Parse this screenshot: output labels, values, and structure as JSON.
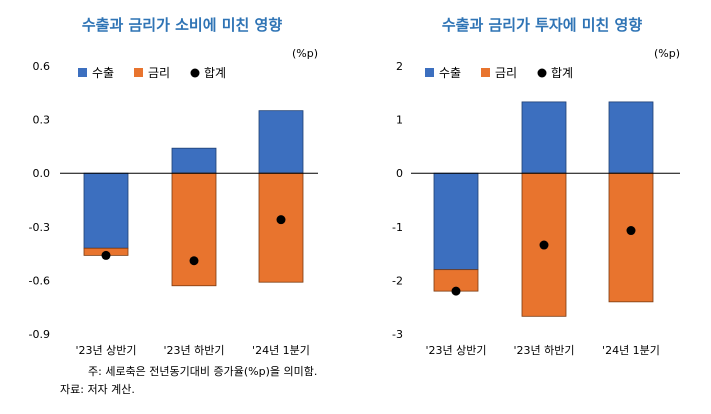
{
  "colors": {
    "export": "#3c6fbf",
    "rate": "#e8742e",
    "total": "#000000",
    "title": "#2f74b5"
  },
  "chart_data": [
    {
      "type": "bar",
      "title": "수출과 금리가 소비에 미친 영향",
      "unit": "(%p)",
      "categories": [
        "'23년 상반기",
        "'23년 하반기",
        "'24년 1분기"
      ],
      "ylim": [
        -0.9,
        0.6
      ],
      "yticks": [
        "0.6",
        "0.3",
        "0.0",
        "-0.3",
        "-0.6",
        "-0.9"
      ],
      "legend": [
        "수출",
        "금리",
        "합계"
      ],
      "series": [
        {
          "name": "수출",
          "values": [
            -0.42,
            0.14,
            0.35
          ]
        },
        {
          "name": "금리",
          "values": [
            -0.04,
            -0.63,
            -0.61
          ]
        },
        {
          "name": "합계",
          "values": [
            -0.46,
            -0.49,
            -0.26
          ]
        }
      ]
    },
    {
      "type": "bar",
      "title": "수출과 금리가 투자에 미친 영향",
      "unit": "(%p)",
      "categories": [
        "'23년 상반기",
        "'23년 하반기",
        "'24년 1분기"
      ],
      "ylim": [
        -3,
        2
      ],
      "yticks": [
        "2",
        "1",
        "0",
        "-1",
        "-2",
        "-3"
      ],
      "legend": [
        "수출",
        "금리",
        "합계"
      ],
      "series": [
        {
          "name": "수출",
          "values": [
            -1.8,
            1.33,
            1.33
          ]
        },
        {
          "name": "금리",
          "values": [
            -0.4,
            -2.67,
            -2.4
          ]
        },
        {
          "name": "합계",
          "values": [
            -2.2,
            -1.34,
            -1.07
          ]
        }
      ]
    }
  ],
  "notes": {
    "note": "주: 세로축은 전년동기대비 증가율(%p)을 의미함.",
    "source": "자료: 저자 계산."
  }
}
